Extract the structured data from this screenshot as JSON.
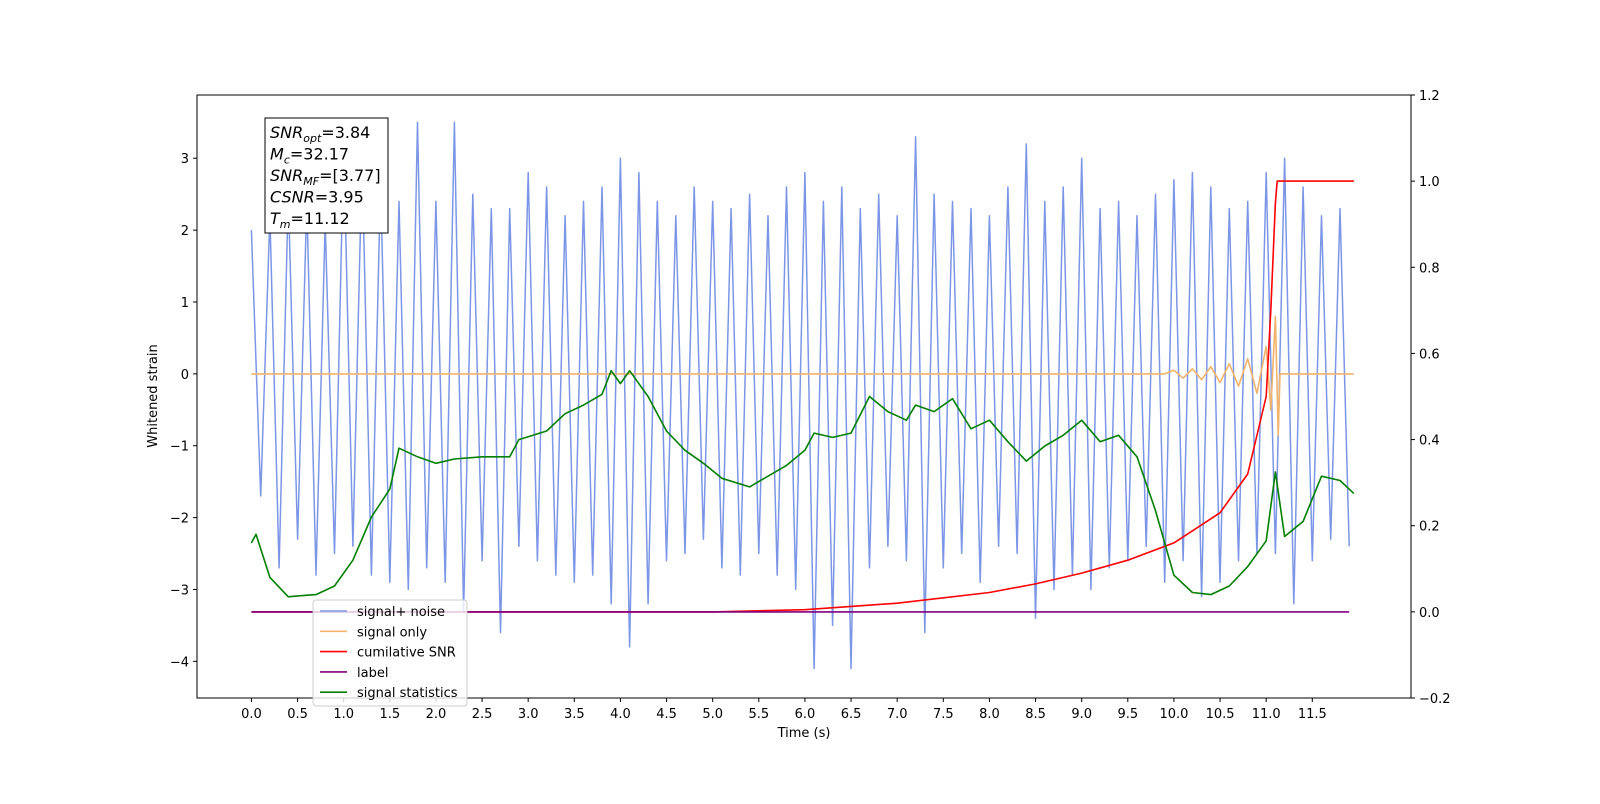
{
  "chart_data": {
    "type": "line",
    "x_label": "Time (s)",
    "y_label": "Whitened strain",
    "xlim": [
      -0.59,
      12.57
    ],
    "ylim": [
      -4.51,
      3.88
    ],
    "y2lim": [
      -0.2,
      1.2
    ],
    "xticks": [
      {
        "value": 0,
        "label": "0.0"
      },
      0.5,
      {
        "value": 1,
        "label": "1.0"
      },
      1.5,
      {
        "value": 2,
        "label": "2.0"
      },
      2.5,
      {
        "value": 3,
        "label": "3.0"
      },
      3.5,
      {
        "value": 4,
        "label": "4.0"
      },
      4.5,
      {
        "value": 5,
        "label": "5.0"
      },
      5.5,
      {
        "value": 6,
        "label": "6.0"
      },
      6.5,
      {
        "value": 7,
        "label": "7.0"
      },
      7.5,
      {
        "value": 8,
        "label": "8.0"
      },
      8.5,
      {
        "value": 9,
        "label": "9.0"
      },
      9.5,
      {
        "value": 10,
        "label": "10.0"
      },
      10.5,
      {
        "value": 11,
        "label": "11.0"
      },
      11.5
    ],
    "yticks": [
      {
        "value": -4,
        "label": "−4"
      },
      {
        "value": -3,
        "label": "−3"
      },
      {
        "value": -2,
        "label": "−2"
      },
      {
        "value": -1,
        "label": "−1"
      },
      0,
      1,
      2,
      3
    ],
    "y2ticks": [
      {
        "value": -0.2,
        "label": "−0.2"
      },
      {
        "value": 0,
        "label": "0.0"
      },
      0.2,
      0.4,
      0.6,
      0.8,
      {
        "value": 1,
        "label": "1.0"
      },
      1.2
    ],
    "annotation": [
      {
        "main": "SNR",
        "sub": "opt",
        "rest": "=3.84"
      },
      {
        "main": "M",
        "sub": "c",
        "rest": "=32.17"
      },
      {
        "main": "SNR",
        "sub": "MF",
        "rest": "=[3.77]"
      },
      {
        "main": "CSNR",
        "sub": null,
        "rest": "=3.95"
      },
      {
        "main": "T",
        "sub": "m",
        "rest": "=11.12"
      }
    ],
    "series": [
      {
        "name": "signal+ noise",
        "color": "#7b96e6",
        "axis": "y",
        "x": [
          0.0,
          0.1,
          0.2,
          0.3,
          0.4,
          0.5,
          0.6,
          0.7,
          0.8,
          0.9,
          1.0,
          1.1,
          1.2,
          1.3,
          1.4,
          1.5,
          1.6,
          1.7,
          1.8,
          1.9,
          2.0,
          2.1,
          2.2,
          2.3,
          2.4,
          2.5,
          2.6,
          2.7,
          2.8,
          2.9,
          3.0,
          3.1,
          3.2,
          3.3,
          3.4,
          3.5,
          3.6,
          3.7,
          3.8,
          3.9,
          4.0,
          4.1,
          4.2,
          4.3,
          4.4,
          4.5,
          4.6,
          4.7,
          4.8,
          4.9,
          5.0,
          5.1,
          5.2,
          5.3,
          5.4,
          5.5,
          5.6,
          5.7,
          5.8,
          5.9,
          6.0,
          6.1,
          6.2,
          6.3,
          6.4,
          6.5,
          6.6,
          6.7,
          6.8,
          6.9,
          7.0,
          7.1,
          7.2,
          7.3,
          7.4,
          7.5,
          7.6,
          7.7,
          7.8,
          7.9,
          8.0,
          8.1,
          8.2,
          8.3,
          8.4,
          8.5,
          8.6,
          8.7,
          8.8,
          8.9,
          9.0,
          9.1,
          9.2,
          9.3,
          9.4,
          9.5,
          9.6,
          9.7,
          9.8,
          9.9,
          10.0,
          10.1,
          10.2,
          10.3,
          10.4,
          10.5,
          10.6,
          10.7,
          10.8,
          10.9,
          11.0,
          11.1,
          11.2,
          11.3,
          11.4,
          11.5,
          11.6,
          11.7,
          11.8,
          11.9
        ],
        "values": [
          2.0,
          -1.7,
          2.2,
          -2.7,
          2.5,
          -2.3,
          2.4,
          -2.8,
          2.1,
          -2.5,
          3.2,
          -2.4,
          3.0,
          -2.8,
          2.7,
          -2.9,
          2.4,
          -3.0,
          3.5,
          -2.7,
          2.4,
          -2.9,
          3.5,
          -3.3,
          2.5,
          -2.6,
          2.3,
          -3.6,
          2.3,
          -2.4,
          2.8,
          -2.6,
          2.6,
          -2.8,
          2.2,
          -2.9,
          2.4,
          -2.8,
          2.6,
          -3.2,
          3.0,
          -3.8,
          2.8,
          -3.2,
          2.4,
          -2.6,
          2.2,
          -2.5,
          2.6,
          -2.3,
          2.4,
          -2.7,
          2.3,
          -2.8,
          2.5,
          -2.5,
          2.2,
          -2.8,
          2.6,
          -3.0,
          2.8,
          -4.1,
          2.4,
          -3.5,
          2.6,
          -4.1,
          2.3,
          -2.7,
          2.5,
          -2.4,
          2.2,
          -2.6,
          3.3,
          -3.6,
          2.5,
          -2.7,
          2.4,
          -2.5,
          2.3,
          -2.9,
          2.2,
          -2.4,
          2.6,
          -2.5,
          3.2,
          -3.4,
          2.4,
          -3.0,
          2.6,
          -2.8,
          3.0,
          -3.0,
          2.3,
          -2.7,
          2.4,
          -2.6,
          2.2,
          -2.4,
          2.5,
          -2.9,
          2.7,
          -2.6,
          2.8,
          -3.1,
          2.6,
          -2.9,
          2.3,
          -2.6,
          2.4,
          -2.5,
          2.8,
          -2.5,
          3.0,
          -3.2,
          2.6,
          -2.6,
          2.2,
          -2.3,
          2.3,
          -2.4
        ]
      },
      {
        "name": "signal only",
        "color": "#f2b36b",
        "axis": "y",
        "x": [
          0.0,
          9.9,
          10.0,
          10.1,
          10.2,
          10.3,
          10.4,
          10.5,
          10.6,
          10.7,
          10.8,
          10.9,
          11.0,
          11.05,
          11.1,
          11.13,
          11.15,
          11.95
        ],
        "values": [
          0,
          0,
          0.05,
          -0.06,
          0.07,
          -0.08,
          0.1,
          -0.12,
          0.14,
          -0.17,
          0.21,
          -0.27,
          0.38,
          -0.5,
          0.8,
          -0.85,
          0,
          0
        ]
      },
      {
        "name": "cumilative SNR",
        "color": "#ff0000",
        "axis": "y2",
        "x": [
          0.0,
          5.0,
          6.0,
          7.0,
          8.0,
          8.5,
          9.0,
          9.5,
          10.0,
          10.5,
          10.8,
          11.0,
          11.05,
          11.1,
          11.12,
          11.95
        ],
        "values": [
          0,
          0,
          0.005,
          0.02,
          0.045,
          0.065,
          0.09,
          0.12,
          0.16,
          0.23,
          0.32,
          0.5,
          0.7,
          0.95,
          1.0,
          1.0
        ]
      },
      {
        "name": "label",
        "color": "#800080",
        "axis": "y2",
        "x": [
          0.0,
          11.9
        ],
        "values": [
          0,
          0
        ]
      },
      {
        "name": "signal statistics",
        "color": "#008000",
        "axis": "y2",
        "x": [
          0.0,
          0.05,
          0.2,
          0.4,
          0.5,
          0.7,
          0.9,
          1.1,
          1.3,
          1.5,
          1.6,
          1.8,
          2.0,
          2.2,
          2.5,
          2.8,
          2.9,
          3.2,
          3.4,
          3.6,
          3.8,
          3.9,
          4.0,
          4.1,
          4.3,
          4.5,
          4.7,
          4.9,
          5.1,
          5.4,
          5.6,
          5.8,
          6.0,
          6.1,
          6.3,
          6.5,
          6.7,
          6.9,
          7.1,
          7.2,
          7.4,
          7.6,
          7.8,
          8.0,
          8.2,
          8.4,
          8.6,
          8.8,
          9.0,
          9.2,
          9.4,
          9.6,
          9.8,
          10.0,
          10.2,
          10.4,
          10.6,
          10.8,
          11.0,
          11.1,
          11.2,
          11.4,
          11.6,
          11.8,
          11.95
        ],
        "values": [
          0.16,
          0.18,
          0.08,
          0.035,
          0.037,
          0.04,
          0.06,
          0.12,
          0.22,
          0.285,
          0.38,
          0.36,
          0.345,
          0.355,
          0.36,
          0.36,
          0.4,
          0.42,
          0.46,
          0.48,
          0.505,
          0.56,
          0.53,
          0.56,
          0.5,
          0.42,
          0.375,
          0.345,
          0.31,
          0.29,
          0.315,
          0.34,
          0.375,
          0.415,
          0.405,
          0.415,
          0.5,
          0.465,
          0.445,
          0.48,
          0.465,
          0.495,
          0.425,
          0.445,
          0.395,
          0.35,
          0.385,
          0.41,
          0.445,
          0.395,
          0.41,
          0.36,
          0.235,
          0.085,
          0.045,
          0.04,
          0.06,
          0.105,
          0.165,
          0.325,
          0.175,
          0.21,
          0.315,
          0.305,
          0.275
        ]
      }
    ]
  }
}
